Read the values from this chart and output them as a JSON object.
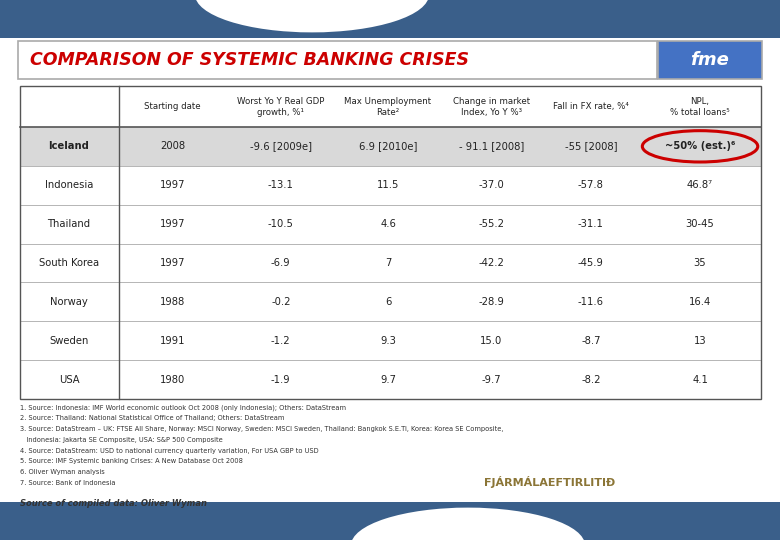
{
  "title": "COMPARISON OF SYSTEMIC BANKING CRISES",
  "col_headers": [
    "",
    "Starting date",
    "Worst Yo Y Real GDP\ngrowth, %¹",
    "Max Unemployment\nRate²",
    "Change in market\nIndex, Yo Y %³",
    "Fall in FX rate, %⁴",
    "NPL,\n% total loans⁵"
  ],
  "rows": [
    [
      "Iceland",
      "2008",
      "-9.6 [2009e]",
      "6.9 [2010e]",
      "- 91.1 [2008]",
      "-55 [2008]",
      "~50% (est.)⁶"
    ],
    [
      "Indonesia",
      "1997",
      "-13.1",
      "11.5",
      "-37.0",
      "-57.8",
      "46.8⁷"
    ],
    [
      "Thailand",
      "1997",
      "-10.5",
      "4.6",
      "-55.2",
      "-31.1",
      "30-45"
    ],
    [
      "South Korea",
      "1997",
      "-6.9",
      "7",
      "-42.2",
      "-45.9",
      "35"
    ],
    [
      "Norway",
      "1988",
      "-0.2",
      "6",
      "-28.9",
      "-11.6",
      "16.4"
    ],
    [
      "Sweden",
      "1991",
      "-1.2",
      "9.3",
      "15.0",
      "-8.7",
      "13"
    ],
    [
      "USA",
      "1980",
      "-1.9",
      "9.7",
      "-9.7",
      "-8.2",
      "4.1"
    ]
  ],
  "notes": [
    "1. Source: Indonesia: IMF World economic outlook Oct 2008 (only Indonesia); Others: DataStream",
    "2. Source: Thailand: National Statistical Office of Thailand; Others: DataStream",
    "3. Source: DataStream – UK: FTSE All Share, Norway: MSCI Norway, Sweden: MSCI Sweden, Thailand: Bangkok S.E.Ti, Korea: Korea SE Composite,",
    "   Indonesia: Jakarta SE Composite, USA: S&P 500 Composite",
    "4. Source: DataStream: USD to national currency quarterly variation, For USA GBP to USD",
    "5. Source: IMF Systemic banking Crises: A New Database Oct 2008",
    "6. Oliver Wyman analysis",
    "7. Source: Bank of Indonesia"
  ],
  "source_text": "Source of compiled data: Oliver Wyman",
  "bg_color": "#ffffff",
  "iceland_row_bg": "#d9d9d9",
  "title_color": "#cc0000",
  "fme_bg": "#4472c4",
  "top_bar_color": "#3a5f8a",
  "bottom_bar_color": "#3a5f8a",
  "circle_color": "#cc0000",
  "border_color": "#555555",
  "line_color": "#aaaaaa",
  "text_color": "#222222",
  "logo_color": "#8B7536"
}
